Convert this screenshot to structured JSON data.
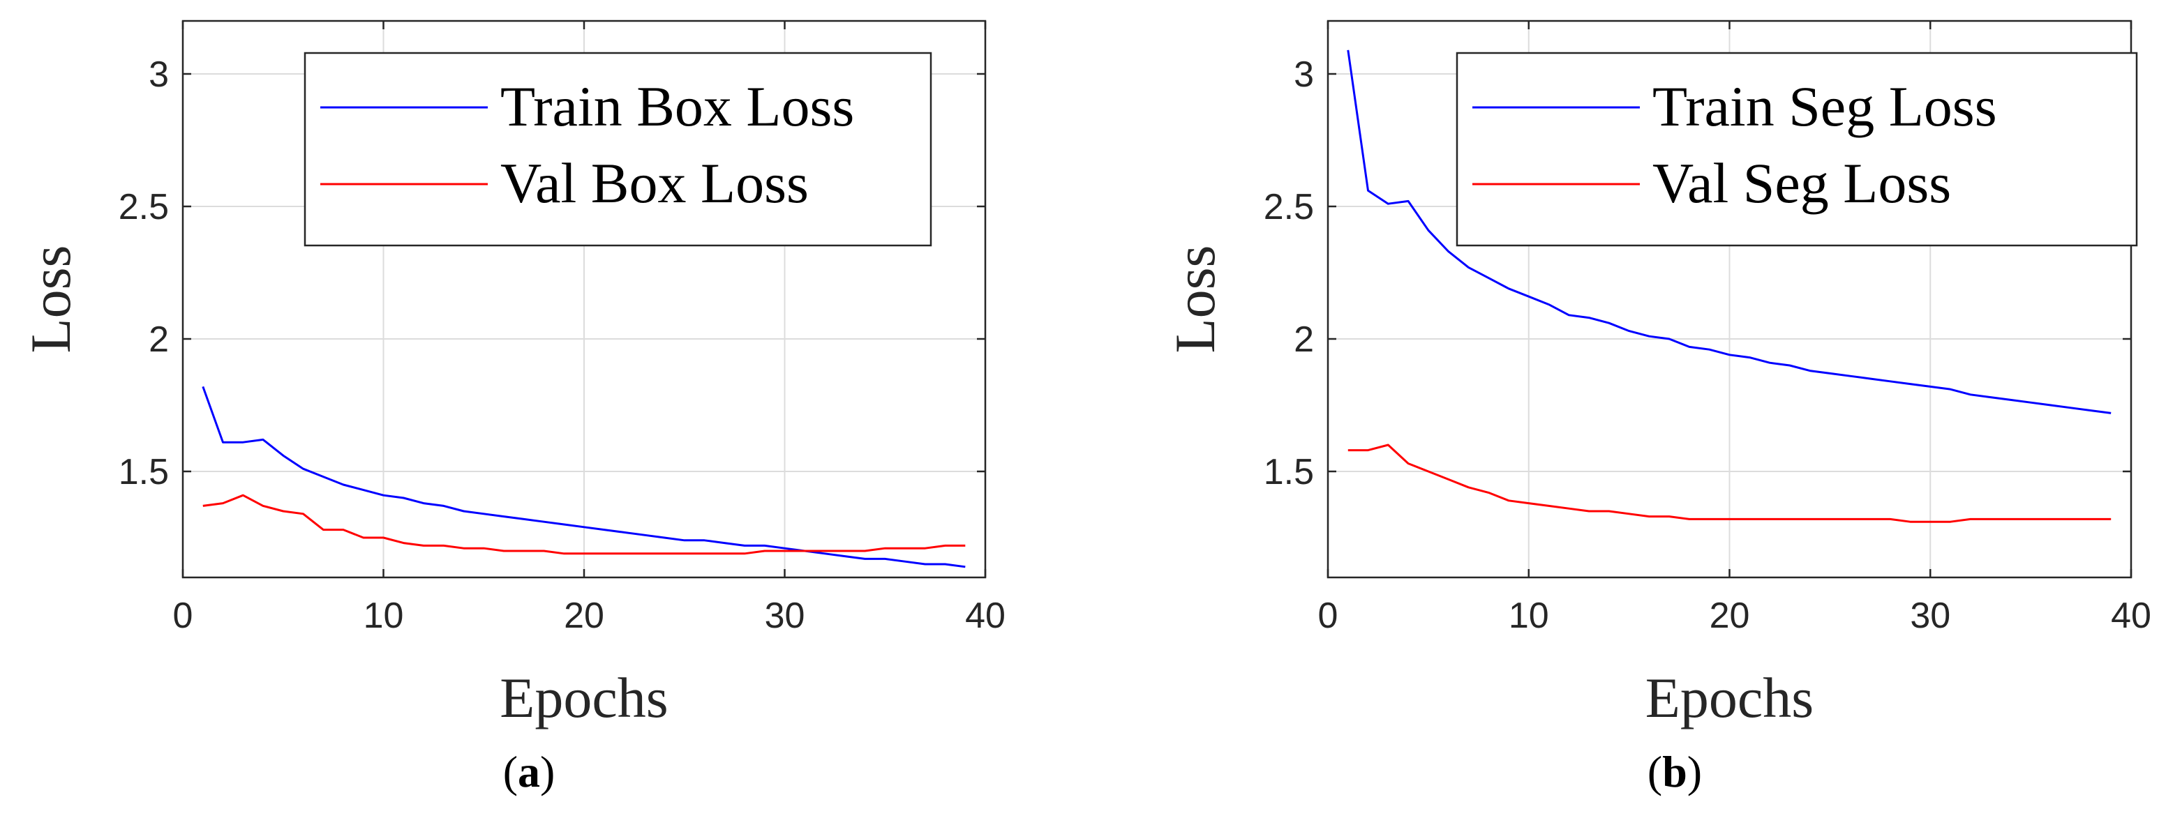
{
  "chart_data": [
    {
      "type": "line",
      "caption_letter": "a",
      "xlabel": "Epochs",
      "ylabel": "Loss",
      "xlim": [
        0,
        40
      ],
      "ylim": [
        1.1,
        3.2
      ],
      "xticks": [
        "0",
        "10",
        "20",
        "30",
        "40"
      ],
      "yticks": [
        "1.5",
        "2",
        "2.5",
        "3"
      ],
      "grid": true,
      "legend_position": "top-right",
      "x": [
        1,
        2,
        3,
        4,
        5,
        6,
        7,
        8,
        9,
        10,
        11,
        12,
        13,
        14,
        15,
        16,
        17,
        18,
        19,
        20,
        21,
        22,
        23,
        24,
        25,
        26,
        27,
        28,
        29,
        30,
        31,
        32,
        33,
        34,
        35,
        36,
        37,
        38,
        39
      ],
      "series": [
        {
          "name": "Train Box Loss",
          "color": "#0000ff",
          "values": [
            1.82,
            1.61,
            1.61,
            1.62,
            1.56,
            1.51,
            1.48,
            1.45,
            1.43,
            1.41,
            1.4,
            1.38,
            1.37,
            1.35,
            1.34,
            1.33,
            1.32,
            1.31,
            1.3,
            1.29,
            1.28,
            1.27,
            1.26,
            1.25,
            1.24,
            1.24,
            1.23,
            1.22,
            1.22,
            1.21,
            1.2,
            1.19,
            1.18,
            1.17,
            1.17,
            1.16,
            1.15,
            1.15,
            1.14
          ]
        },
        {
          "name": "Val Box Loss",
          "color": "#ff0000",
          "values": [
            1.37,
            1.38,
            1.41,
            1.37,
            1.35,
            1.34,
            1.28,
            1.28,
            1.25,
            1.25,
            1.23,
            1.22,
            1.22,
            1.21,
            1.21,
            1.2,
            1.2,
            1.2,
            1.19,
            1.19,
            1.19,
            1.19,
            1.19,
            1.19,
            1.19,
            1.19,
            1.19,
            1.19,
            1.2,
            1.2,
            1.2,
            1.2,
            1.2,
            1.2,
            1.21,
            1.21,
            1.21,
            1.22,
            1.22
          ]
        }
      ]
    },
    {
      "type": "line",
      "caption_letter": "b",
      "xlabel": "Epochs",
      "ylabel": "Loss",
      "xlim": [
        0,
        40
      ],
      "ylim": [
        1.1,
        3.2
      ],
      "xticks": [
        "0",
        "10",
        "20",
        "30",
        "40"
      ],
      "yticks": [
        "1.5",
        "2",
        "2.5",
        "3"
      ],
      "grid": true,
      "legend_position": "top-right",
      "x": [
        1,
        2,
        3,
        4,
        5,
        6,
        7,
        8,
        9,
        10,
        11,
        12,
        13,
        14,
        15,
        16,
        17,
        18,
        19,
        20,
        21,
        22,
        23,
        24,
        25,
        26,
        27,
        28,
        29,
        30,
        31,
        32,
        33,
        34,
        35,
        36,
        37,
        38,
        39
      ],
      "series": [
        {
          "name": "Train Seg Loss",
          "color": "#0000ff",
          "values": [
            3.09,
            2.56,
            2.51,
            2.52,
            2.41,
            2.33,
            2.27,
            2.23,
            2.19,
            2.16,
            2.13,
            2.09,
            2.08,
            2.06,
            2.03,
            2.01,
            2.0,
            1.97,
            1.96,
            1.94,
            1.93,
            1.91,
            1.9,
            1.88,
            1.87,
            1.86,
            1.85,
            1.84,
            1.83,
            1.82,
            1.81,
            1.79,
            1.78,
            1.77,
            1.76,
            1.75,
            1.74,
            1.73,
            1.72
          ]
        },
        {
          "name": "Val Seg Loss",
          "color": "#ff0000",
          "values": [
            1.58,
            1.58,
            1.6,
            1.53,
            1.5,
            1.47,
            1.44,
            1.42,
            1.39,
            1.38,
            1.37,
            1.36,
            1.35,
            1.35,
            1.34,
            1.33,
            1.33,
            1.32,
            1.32,
            1.32,
            1.32,
            1.32,
            1.32,
            1.32,
            1.32,
            1.32,
            1.32,
            1.32,
            1.31,
            1.31,
            1.31,
            1.32,
            1.32,
            1.32,
            1.32,
            1.32,
            1.32,
            1.32,
            1.32
          ]
        }
      ]
    }
  ]
}
